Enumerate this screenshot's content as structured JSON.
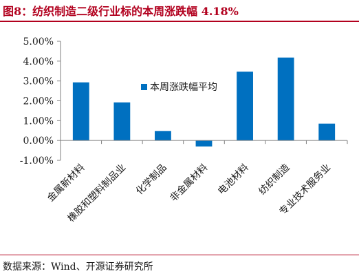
{
  "header": {
    "title": "图8：纺织制造二级行业标的本周涨跌幅 4.18%"
  },
  "footer": {
    "source": "数据来源：Wind、开源证券研究所"
  },
  "chart_data": {
    "type": "bar",
    "title": "",
    "xlabel": "",
    "ylabel": "",
    "categories": [
      "金属新材料",
      "橡胶和塑料制品业",
      "化学制品",
      "非金属材料",
      "电池材料",
      "纺织制造",
      "专业技术服务业"
    ],
    "series": [
      {
        "name": "本周涨跌幅平均",
        "values": [
          2.93,
          1.92,
          0.48,
          -0.3,
          3.47,
          4.18,
          0.85
        ]
      }
    ],
    "ylim": [
      -1.0,
      5.0
    ],
    "yticks": [
      "-1.00%",
      "0.00%",
      "1.00%",
      "2.00%",
      "3.00%",
      "4.00%",
      "5.00%"
    ],
    "ytick_values": [
      -1,
      0,
      1,
      2,
      3,
      4,
      5
    ],
    "grid": false,
    "legend_position": "top-center",
    "colors": {
      "bar": "#0070c0",
      "title": "#b2001e",
      "axis": "#7f7f7f"
    }
  }
}
